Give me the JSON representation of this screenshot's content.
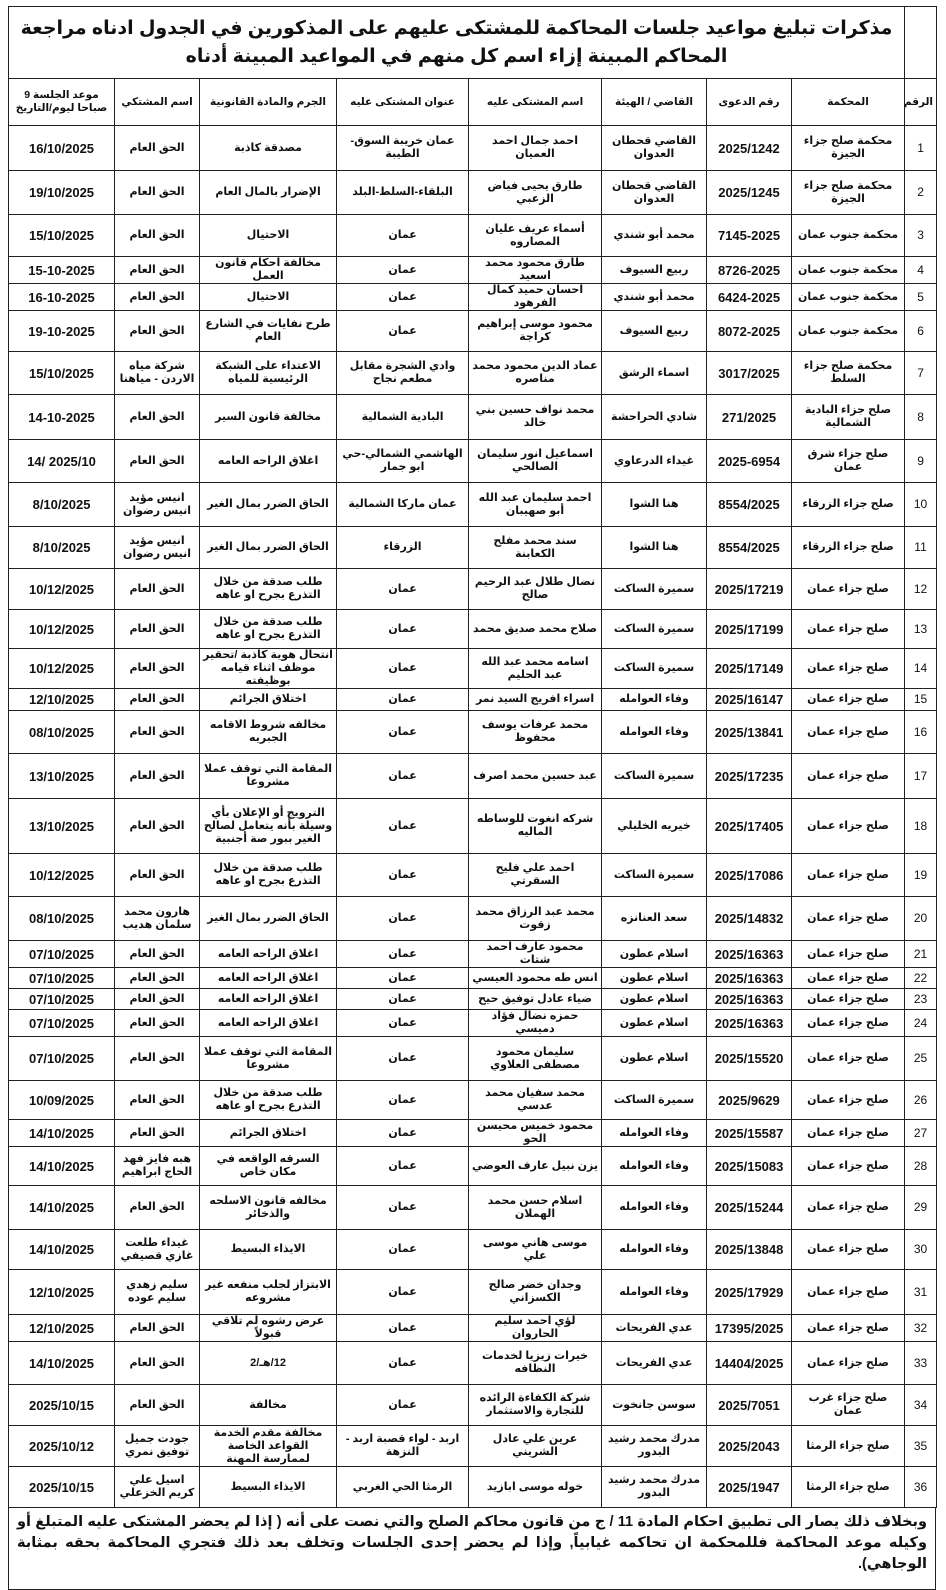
{
  "title": "مذكرات تبليغ مواعيد جلسات المحاكمة للمشتكى عليهم على المذكورين في الجدول ادناه مراجعة المحاكم المبينة إزاء اسم كل منهم في المواعيد المبينة أدناه",
  "table": {
    "header": [
      "الرقم",
      "المحكمة",
      "رقم الدعوى",
      "القاضي / الهيئة",
      "اسم المشتكى عليه",
      "عنوان المشتكى عليه",
      "الجرم والمادة القانونية",
      "اسم المشتكي",
      "موعد الجلسة 9 صباحا ليوم/التاريخ"
    ],
    "rows": [
      [
        1,
        "محكمة صلح جزاء الجيزة",
        "2025/1242",
        "القاضي قحطان العدوان",
        "احمد جمال احمد العميان",
        "عمان خريبة السوق-الطيبة",
        "مصدقة كاذبة",
        "الحق العام",
        "16/10/2025"
      ],
      [
        2,
        "محكمة صلح جزاء الجيزة",
        "2025/1245",
        "القاضي قحطان العدوان",
        "طارق يحيى فياض الزعبي",
        "البلقاء-السلط-البلد",
        "الإضرار بالمال العام",
        "الحق العام",
        "19/10/2025"
      ],
      [
        3,
        "محكمة جنوب عمان",
        "7145-2025",
        "محمد أبو شندي",
        "أسماء عريف عليان المصاروه",
        "عمان",
        "الاحتيال",
        "الحق العام",
        "15/10/2025"
      ],
      [
        4,
        "محكمة جنوب عمان",
        "8726-2025",
        "ربيع السيوف",
        "طارق محمود محمد اسعيد",
        "عمان",
        "مخالفة احكام قانون العمل",
        "الحق العام",
        "15-10-2025"
      ],
      [
        5,
        "محكمة جنوب عمان",
        "6424-2025",
        "محمد أبو شندي",
        "احسان حميد كمال الفرهود",
        "عمان",
        "الاحتيال",
        "الحق العام",
        "16-10-2025"
      ],
      [
        6,
        "محكمة جنوب عمان",
        "8072-2025",
        "ربيع السيوف",
        "محمود موسى إبراهيم كراجة",
        "عمان",
        "طرح نفايات في الشارع العام",
        "الحق العام",
        "19-10-2025"
      ],
      [
        7,
        "محكمة صلح جزاء السلط",
        "3017/2025",
        "اسماء الرشق",
        "عماد الدين محمود محمد مناصره",
        "وادي الشجرة مقابل مطعم نجاح",
        "الاعتداء على الشبكة الرئيسية للمياه",
        "شركة مياه الاردن - مياهنا",
        "15/10/2025"
      ],
      [
        8,
        "صلح جزاء البادية الشمالية",
        "271/2025",
        "شادي الحراحشة",
        "محمد نواف حسين بني خالد",
        "البادية الشمالية",
        "مخالفة قانون السير",
        "الحق العام",
        "14-10-2025"
      ],
      [
        9,
        "صلح جزاء شرق عمان",
        "2025-6954",
        "غيداء الدرعاوي",
        "اسماعيل انور سليمان الصالحي",
        "الهاشمي الشمالي-حي ابو جمار",
        "اغلاق الراحه العامه",
        "الحق العام",
        "14/ 2025/10"
      ],
      [
        10,
        "صلح جزاء الزرقاء",
        "8554/2025",
        "هنا الشوا",
        "احمد سليمان عبد الله أبو صهيبان",
        "عمان ماركا الشمالية",
        "الحاق الضرر بمال الغير",
        "انيس مؤيد انيس رضوان",
        "8/10/2025"
      ],
      [
        11,
        "صلح جزاء الزرقاء",
        "8554/2025",
        "هنا الشوا",
        "سند محمد مفلح الكعابنة",
        "الزرقاء",
        "الحاق الضرر بمال الغير",
        "انيس مؤيد انيس رضوان",
        "8/10/2025"
      ],
      [
        12,
        "صلح جزاء عمان",
        "2025/17219",
        "سميرة الساكت",
        "نضال طلال عبد الرحيم صالح",
        "عمان",
        "طلب صدقة من خلال التذرع بجرح او عاهه",
        "الحق العام",
        "10/12/2025"
      ],
      [
        13,
        "صلح جزاء عمان",
        "2025/17199",
        "سميرة الساكت",
        "صلاح محمد صديق محمد",
        "عمان",
        "طلب صدقة من خلال التذرع بجرح او عاهه",
        "الحق العام",
        "10/12/2025"
      ],
      [
        14,
        "صلح جزاء عمان",
        "2025/17149",
        "سميرة الساكت",
        "اسامه محمد عبد الله عبد الحليم",
        "عمان",
        "انتحال هوية كاذبة /تحقير موظف اثناء قيامه بوظيفته",
        "الحق العام",
        "10/12/2025"
      ],
      [
        15,
        "صلح جزاء عمان",
        "2025/16147",
        "وفاء العوامله",
        "اسراء افريج السيد نمر",
        "عمان",
        "اختلاق الجرائم",
        "الحق العام",
        "12/10/2025"
      ],
      [
        16,
        "صلح جزاء عمان",
        "2025/13841",
        "وفاء العوامله",
        "محمد عرفات يوسف محفوظ",
        "عمان",
        "مخالفه شروط الاقامه الجبريه",
        "الحق العام",
        "08/10/2025"
      ],
      [
        17,
        "صلح جزاء عمان",
        "2025/17235",
        "سميرة الساكت",
        "عبد حسين محمد اصرف",
        "عمان",
        "المقامة التي توقف عملا مشروعا",
        "الحق العام",
        "13/10/2025"
      ],
      [
        18,
        "صلح جزاء عمان",
        "2025/17405",
        "خيريه الخليلي",
        "شركه انغوت للوساطه الماليه",
        "عمان",
        "الترويج أو الإعلان بأي وسيلة بأنه يتعامل لصالح الغير ببور صة أجنبية",
        "الحق العام",
        "13/10/2025"
      ],
      [
        19,
        "صلح جزاء عمان",
        "2025/17086",
        "سميرة الساكت",
        "احمد علي فليح السقرتي",
        "عمان",
        "طلب صدقة من خلال التذرع بجرح او عاهه",
        "الحق العام",
        "10/12/2025"
      ],
      [
        20,
        "صلح جزاء عمان",
        "2025/14832",
        "سعد العنانزه",
        "محمد عبد الرزاق محمد زقوت",
        "عمان",
        "الحاق الضرر بمال الغير",
        "هارون محمد سلمان هديب",
        "08/10/2025"
      ],
      [
        21,
        "صلح جزاء عمان",
        "2025/16363",
        "اسلام عطون",
        "محمود عارف احمد شتات",
        "عمان",
        "اغلاق الراحه العامه",
        "الحق العام",
        "07/10/2025"
      ],
      [
        22,
        "صلح جزاء عمان",
        "2025/16363",
        "اسلام عطون",
        "انس طه محمود العيسي",
        "عمان",
        "اغلاق الراحه العامه",
        "الحق العام",
        "07/10/2025"
      ],
      [
        23,
        "صلح جزاء عمان",
        "2025/16363",
        "اسلام عطون",
        "ضياء عادل توفيق حيح",
        "عمان",
        "اغلاق الراحه العامه",
        "الحق العام",
        "07/10/2025"
      ],
      [
        24,
        "صلح جزاء عمان",
        "2025/16363",
        "اسلام عطون",
        "حمزه نضال فؤاد دميسي",
        "عمان",
        "اغلاق الراحه العامه",
        "الحق العام",
        "07/10/2025"
      ],
      [
        25,
        "صلح جزاء عمان",
        "2025/15520",
        "اسلام عطون",
        "سليمان محمود مصطفى العلاوي",
        "عمان",
        "المقامة التي توقف عملا مشروعا",
        "الحق العام",
        "07/10/2025"
      ],
      [
        26,
        "صلح جزاء عمان",
        "2025/9629",
        "سميرة الساكت",
        "محمد سفيان محمد عدسي",
        "عمان",
        "طلب صدقة من خلال التذرع بجرح او عاهه",
        "الحق العام",
        "10/09/2025"
      ],
      [
        27,
        "صلح جزاء عمان",
        "2025/15587",
        "وفاء العوامله",
        "محمود خميس محيسن الحو",
        "عمان",
        "اختلاق الجرائم",
        "الحق العام",
        "14/10/2025"
      ],
      [
        28,
        "صلح جزاء عمان",
        "2025/15083",
        "وفاء العوامله",
        "يزن نبيل عارف العوضي",
        "عمان",
        "السرقه الواقعه في مكان خاص",
        "هبه فايز فهد الحاج ابراهيم",
        "14/10/2025"
      ],
      [
        29,
        "صلح جزاء عمان",
        "2025/15244",
        "وفاء العوامله",
        "اسلام حسن محمد الهملان",
        "عمان",
        "مخالفه قانون الاسلحه والذخائر",
        "الحق العام",
        "14/10/2025"
      ],
      [
        30,
        "صلح جزاء عمان",
        "2025/13848",
        "وفاء العوامله",
        "موسى هاني موسى علي",
        "عمان",
        "الايذاء البسيط",
        "غيداء طلعت غازي قصيفي",
        "14/10/2025"
      ],
      [
        31,
        "صلح جزاء عمان",
        "2025/17929",
        "وفاء العوامله",
        "وجدان خضر صالح الكسزاني",
        "عمان",
        "الابتزاز لجلب منفعه غير مشروعه",
        "سليم زهدي سليم عوده",
        "12/10/2025"
      ],
      [
        32,
        "صلح جزاء عمان",
        "17395/2025",
        "عدي الفريحات",
        "لؤي احمد سليم الحاروان",
        "عمان",
        "عرض رشوه لم تلاقي قبولاً",
        "الحق العام",
        "12/10/2025"
      ],
      [
        33,
        "صلح جزاء عمان",
        "14404/2025",
        "عدي الفريحات",
        "خيرات زيزيا لخدمات النظافه",
        "عمان",
        "12/هـ/2",
        "الحق العام",
        "14/10/2025"
      ],
      [
        34,
        "صلح جزاء غرب عمان",
        "2025/7051",
        "سوسن جانخوت",
        "شركة الكفاءة الرائده للتجارة والاستثمار",
        "عمان",
        "مخالفة",
        "الحق العام",
        "2025/10/15"
      ],
      [
        35,
        "صلح جزاء الرمثا",
        "2025/2043",
        "مدرك محمد رشيد البدور",
        "عرين علي عادل الشريني",
        "اربد - لواء قصبة اربد - النزهة",
        "مخالفة مقدم الخدمة القواعد الخاصة لممارسة المهنة",
        "جودت جميل توفيق نمري",
        "2025/10/12"
      ],
      [
        36,
        "صلح جزاء الرمثا",
        "2025/1947",
        "مدرك محمد رشيد البدور",
        "خوله موسى ابازيد",
        "الرمثا الحي الغربي",
        "الايذاء البسيط",
        "اسيل علي كريم الخزعلي",
        "2025/10/15"
      ]
    ]
  },
  "footer": "وبخلاف ذلك يصار الى تطبيق احكام المادة 11 / ج من قانون محاكم الصلح والتي نصت على أنه ( إذا لم يحضر المشتكى عليه المتبلغ أو وكيله موعد المحاكمة فللمحكمة ان تحاكمه غيابياً, وإذا لم يحضر إحدى الجلسات وتخلف بعد ذلك فتجري المحاكمة بحقه بمثابة الوجاهي)."
}
